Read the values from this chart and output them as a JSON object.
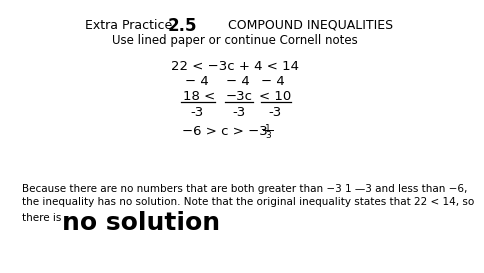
{
  "bg_color": "#ffffff",
  "header_left": "Extra Practice",
  "header_num": "2.5",
  "header_right": "COMPOUND INEQUALITIES",
  "subheader": "Use lined paper or continue Cornell notes",
  "line1": "22 < −3c + 4 < 14",
  "line2_parts": [
    "− 4",
    "− 4",
    "− 4"
  ],
  "line3_parts": [
    "18 <",
    "−3c",
    "< 10"
  ],
  "line4_parts": [
    "-3",
    "-3",
    "-3"
  ],
  "line5_main": "−6 > c > −3",
  "line5_frac_num": "1",
  "line5_frac_den": "3",
  "body_text1": "Because there are no numbers that are both greater than −3 1 —3 and less than −6,",
  "body_text2": "the inequality has no solution. Note that the original inequality states that 22 < 14, so",
  "footer_small": "there is",
  "footer_large": "no solution",
  "title_fontsize": 9,
  "header_num_fontsize": 12,
  "sub_fontsize": 8.5,
  "math_fontsize": 9.5,
  "body_fontsize": 7.5,
  "footer_small_fontsize": 7.5,
  "footer_large_fontsize": 18
}
